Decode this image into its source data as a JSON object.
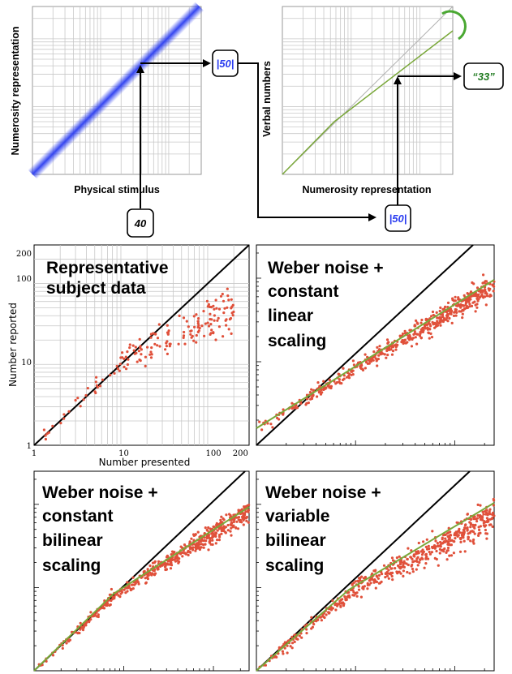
{
  "diagram": {
    "top_left": {
      "xlabel": "Physical stimulus",
      "ylabel": "Numerosity representation"
    },
    "top_right": {
      "xlabel": "Numerosity representation",
      "ylabel": "Verbal numbers"
    },
    "boxes": {
      "stimulus": "40",
      "representation": "|50|",
      "representation_repeat": "|50|",
      "verbal": "“33”"
    },
    "colors": {
      "representation_blue": "#2a3cf0",
      "verbal_green": "#1f7a1f",
      "model_line": "#7aa83a",
      "data_points": "#e0503a"
    }
  },
  "panels": [
    {
      "title_lines": [
        "Representative",
        "subject data"
      ],
      "xlabel": "Number presented",
      "ylabel": "Number reported",
      "xticks": [
        "1",
        "10",
        "100",
        "200"
      ],
      "yticks": [
        "1",
        "10",
        "100",
        "200"
      ]
    },
    {
      "title_lines": [
        "Weber noise +",
        "constant",
        "linear",
        "scaling"
      ]
    },
    {
      "title_lines": [
        "Weber noise +",
        "constant",
        "bilinear",
        "scaling"
      ]
    },
    {
      "title_lines": [
        "Weber noise +",
        "variable",
        "bilinear",
        "scaling"
      ]
    }
  ],
  "chart_data": [
    {
      "type": "scatter",
      "title": "Representative subject data",
      "xlabel": "Number presented",
      "ylabel": "Number reported",
      "x_scale": "log",
      "y_scale": "log",
      "xlim": [
        1,
        250
      ],
      "ylim": [
        1,
        250
      ],
      "grid": true,
      "reference_line": "y = x",
      "series": [
        {
          "name": "",
          "model_line": false
        }
      ]
    },
    {
      "type": "scatter",
      "title": "Weber noise + constant linear scaling",
      "x_scale": "log",
      "y_scale": "log",
      "reference_line": "y = x",
      "series": [
        {
          "name": "",
          "model_line": true
        }
      ]
    },
    {
      "type": "scatter",
      "title": "Weber noise + constant bilinear scaling",
      "x_scale": "log",
      "y_scale": "log",
      "reference_line": "y = x",
      "series": [
        {
          "name": "",
          "model_line": true
        }
      ]
    },
    {
      "type": "scatter",
      "title": "Weber noise + variable bilinear scaling",
      "x_scale": "log",
      "y_scale": "log",
      "reference_line": "y = x",
      "series": [
        {
          "name": "",
          "model_line": true
        }
      ]
    }
  ]
}
